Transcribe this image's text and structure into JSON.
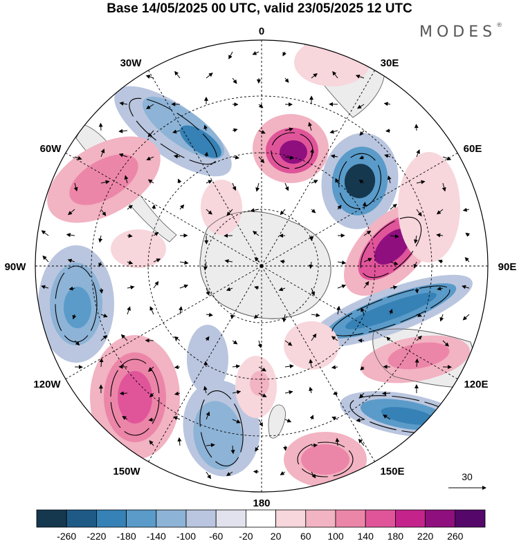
{
  "title": "Base 14/05/2025 00 UTC, valid 23/05/2025 12 UTC",
  "brand": "MODES",
  "brand_mark": "®",
  "map_labels": {
    "lon_0": "0",
    "lon_30e": "30E",
    "lon_60e": "60E",
    "lon_90e": "90E",
    "lon_120e": "120E",
    "lon_150e": "150E",
    "lon_180": "180",
    "lon_150w": "150W",
    "lon_120w": "120W",
    "lon_90w": "90W",
    "lon_60w": "60W",
    "lon_30w": "30W"
  },
  "reference_vector": {
    "value": "30"
  },
  "colorbar": {
    "ticks": [
      "-260",
      "-220",
      "-180",
      "-140",
      "-100",
      "-60",
      "-20",
      "20",
      "60",
      "100",
      "140",
      "180",
      "220",
      "260"
    ],
    "colors": [
      "#15384f",
      "#1f5a86",
      "#3681b5",
      "#5a9bc9",
      "#8db3d6",
      "#bac6df",
      "#e2e2ee",
      "#ffffff",
      "#f7d6dc",
      "#f2b3c2",
      "#ec86a9",
      "#e0559a",
      "#c4238c",
      "#8f0f7e",
      "#55086a"
    ]
  },
  "colors": {
    "land": "#ececec",
    "coast": "#555555",
    "grid": "#000000"
  }
}
